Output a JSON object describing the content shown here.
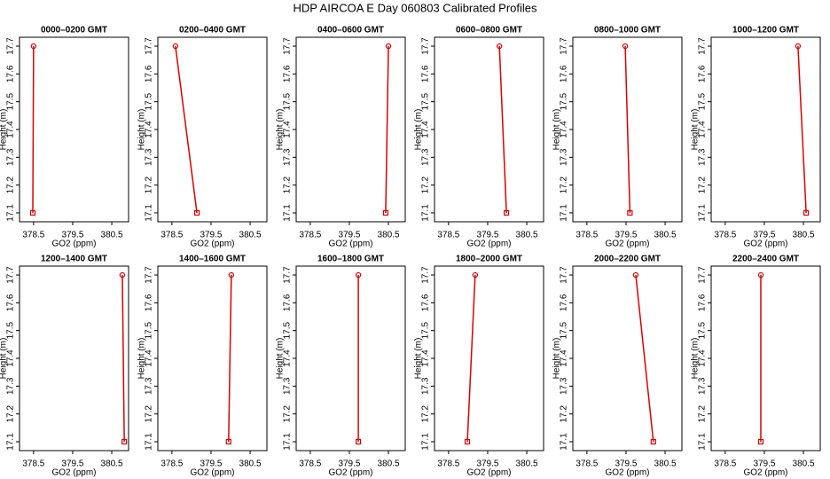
{
  "title": "HDP AIRCOA E  Day 060803  Calibrated Profiles",
  "chart_data": [
    {
      "type": "line",
      "title": "0000–0200 GMT",
      "xlabel": "GO2 (ppm)",
      "ylabel": "Height (m)",
      "x": [
        378.48,
        378.5
      ],
      "values": [
        17.1,
        17.7
      ],
      "color": "#dd0000",
      "xlim": [
        378.14,
        380.93
      ],
      "ylim": [
        17.068,
        17.732
      ],
      "xticks": [
        378.5,
        379.5,
        380.5
      ],
      "yticks": [
        17.1,
        17.2,
        17.3,
        17.4,
        17.5,
        17.6,
        17.7
      ]
    },
    {
      "type": "line",
      "title": "0200–0400 GMT",
      "xlabel": "GO2 (ppm)",
      "ylabel": "Height (m)",
      "x": [
        379.14,
        378.59
      ],
      "values": [
        17.1,
        17.7
      ],
      "color": "#dd0000",
      "xlim": [
        378.14,
        380.93
      ],
      "ylim": [
        17.068,
        17.732
      ],
      "xticks": [
        378.5,
        379.5,
        380.5
      ],
      "yticks": [
        17.1,
        17.2,
        17.3,
        17.4,
        17.5,
        17.6,
        17.7
      ]
    },
    {
      "type": "line",
      "title": "0400–0600 GMT",
      "xlabel": "GO2 (ppm)",
      "ylabel": "Height (m)",
      "x": [
        380.43,
        380.5
      ],
      "values": [
        17.1,
        17.7
      ],
      "color": "#dd0000",
      "xlim": [
        378.14,
        380.93
      ],
      "ylim": [
        17.068,
        17.732
      ],
      "xticks": [
        378.5,
        379.5,
        380.5
      ],
      "yticks": [
        17.1,
        17.2,
        17.3,
        17.4,
        17.5,
        17.6,
        17.7
      ]
    },
    {
      "type": "line",
      "title": "0600–0800 GMT",
      "xlabel": "GO2 (ppm)",
      "ylabel": "Height (m)",
      "x": [
        379.98,
        379.8
      ],
      "values": [
        17.1,
        17.7
      ],
      "color": "#dd0000",
      "xlim": [
        378.14,
        380.93
      ],
      "ylim": [
        17.068,
        17.732
      ],
      "xticks": [
        378.5,
        379.5,
        380.5
      ],
      "yticks": [
        17.1,
        17.2,
        17.3,
        17.4,
        17.5,
        17.6,
        17.7
      ]
    },
    {
      "type": "line",
      "title": "0800–1000 GMT",
      "xlabel": "GO2 (ppm)",
      "ylabel": "Height (m)",
      "x": [
        379.6,
        379.48
      ],
      "values": [
        17.1,
        17.7
      ],
      "color": "#dd0000",
      "xlim": [
        378.14,
        380.93
      ],
      "ylim": [
        17.068,
        17.732
      ],
      "xticks": [
        378.5,
        379.5,
        380.5
      ],
      "yticks": [
        17.1,
        17.2,
        17.3,
        17.4,
        17.5,
        17.6,
        17.7
      ]
    },
    {
      "type": "line",
      "title": "1000–1200 GMT",
      "xlabel": "GO2 (ppm)",
      "ylabel": "Height (m)",
      "x": [
        380.57,
        380.36
      ],
      "values": [
        17.1,
        17.7
      ],
      "color": "#dd0000",
      "xlim": [
        378.14,
        380.93
      ],
      "ylim": [
        17.068,
        17.732
      ],
      "xticks": [
        378.5,
        379.5,
        380.5
      ],
      "yticks": [
        17.1,
        17.2,
        17.3,
        17.4,
        17.5,
        17.6,
        17.7
      ]
    },
    {
      "type": "line",
      "title": "1200–1400 GMT",
      "xlabel": "GO2 (ppm)",
      "ylabel": "Height (m)",
      "x": [
        380.82,
        380.77
      ],
      "values": [
        17.1,
        17.7
      ],
      "color": "#dd0000",
      "xlim": [
        378.14,
        380.93
      ],
      "ylim": [
        17.068,
        17.732
      ],
      "xticks": [
        378.5,
        379.5,
        380.5
      ],
      "yticks": [
        17.1,
        17.2,
        17.3,
        17.4,
        17.5,
        17.6,
        17.7
      ]
    },
    {
      "type": "line",
      "title": "1400–1600 GMT",
      "xlabel": "GO2 (ppm)",
      "ylabel": "Height (m)",
      "x": [
        379.95,
        380.02
      ],
      "values": [
        17.1,
        17.7
      ],
      "color": "#dd0000",
      "xlim": [
        378.14,
        380.93
      ],
      "ylim": [
        17.068,
        17.732
      ],
      "xticks": [
        378.5,
        379.5,
        380.5
      ],
      "yticks": [
        17.1,
        17.2,
        17.3,
        17.4,
        17.5,
        17.6,
        17.7
      ]
    },
    {
      "type": "line",
      "title": "1600–1800 GMT",
      "xlabel": "GO2 (ppm)",
      "ylabel": "Height (m)",
      "x": [
        379.73,
        379.73
      ],
      "values": [
        17.1,
        17.7
      ],
      "color": "#dd0000",
      "xlim": [
        378.14,
        380.93
      ],
      "ylim": [
        17.068,
        17.732
      ],
      "xticks": [
        378.5,
        379.5,
        380.5
      ],
      "yticks": [
        17.1,
        17.2,
        17.3,
        17.4,
        17.5,
        17.6,
        17.7
      ]
    },
    {
      "type": "line",
      "title": "1800–2000 GMT",
      "xlabel": "GO2 (ppm)",
      "ylabel": "Height (m)",
      "x": [
        378.98,
        379.18
      ],
      "values": [
        17.1,
        17.7
      ],
      "color": "#dd0000",
      "xlim": [
        378.14,
        380.93
      ],
      "ylim": [
        17.068,
        17.732
      ],
      "xticks": [
        378.5,
        379.5,
        380.5
      ],
      "yticks": [
        17.1,
        17.2,
        17.3,
        17.4,
        17.5,
        17.6,
        17.7
      ]
    },
    {
      "type": "line",
      "title": "2000–2200 GMT",
      "xlabel": "GO2 (ppm)",
      "ylabel": "Height (m)",
      "x": [
        380.2,
        379.75
      ],
      "values": [
        17.1,
        17.7
      ],
      "color": "#dd0000",
      "xlim": [
        378.14,
        380.93
      ],
      "ylim": [
        17.068,
        17.732
      ],
      "xticks": [
        378.5,
        379.5,
        380.5
      ],
      "yticks": [
        17.1,
        17.2,
        17.3,
        17.4,
        17.5,
        17.6,
        17.7
      ]
    },
    {
      "type": "line",
      "title": "2200–2400 GMT",
      "xlabel": "GO2 (ppm)",
      "ylabel": "Height (m)",
      "x": [
        379.41,
        379.41
      ],
      "values": [
        17.1,
        17.7
      ],
      "color": "#dd0000",
      "xlim": [
        378.14,
        380.93
      ],
      "ylim": [
        17.068,
        17.732
      ],
      "xticks": [
        378.5,
        379.5,
        380.5
      ],
      "yticks": [
        17.1,
        17.2,
        17.3,
        17.4,
        17.5,
        17.6,
        17.7
      ]
    }
  ]
}
